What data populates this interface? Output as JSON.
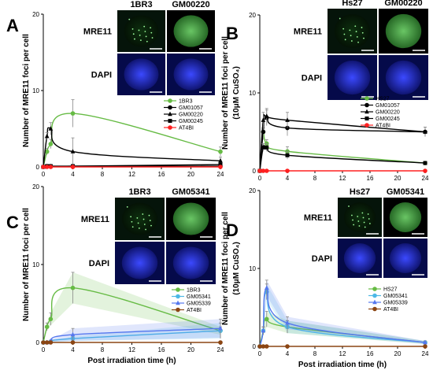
{
  "chart_data": [
    {
      "type": "line",
      "panel_label": "A",
      "ylabel": "Number of MRE11 foci per cell",
      "ylabel2": "",
      "xlabel": "",
      "xlim": [
        0,
        24
      ],
      "ylim": [
        0,
        20
      ],
      "x_ticks": [
        0,
        4,
        8,
        12,
        16,
        20,
        24
      ],
      "y_ticks": [
        0,
        10,
        20
      ],
      "x": [
        0,
        0.5,
        1,
        4,
        24
      ],
      "series": [
        {
          "name": "1BR3",
          "color": "#66bb44",
          "marker": "circle",
          "values": [
            0,
            2.0,
            3.0,
            7.0,
            2.0
          ],
          "errors": [
            0,
            0.4,
            0.6,
            1.8,
            0.6
          ]
        },
        {
          "name": "GM01057",
          "color": "#000000",
          "marker": "circle",
          "values": [
            0,
            0.1,
            0.1,
            0.1,
            0.1
          ],
          "errors": [
            0,
            0,
            0,
            0,
            0
          ]
        },
        {
          "name": "GM00220",
          "color": "#000000",
          "marker": "triangle",
          "values": [
            0,
            4.0,
            5.0,
            2.0,
            0.8
          ],
          "errors": [
            0,
            0.5,
            0.8,
            1.8,
            0.5
          ]
        },
        {
          "name": "GM00245",
          "color": "#000000",
          "marker": "square",
          "values": [
            0,
            0.1,
            0.1,
            0.1,
            0.3
          ],
          "errors": [
            0,
            0,
            0,
            0,
            0
          ]
        },
        {
          "name": "AT4BI",
          "color": "#ff2020",
          "marker": "circle",
          "values": [
            0,
            0,
            0,
            0,
            0
          ],
          "errors": [
            0,
            0,
            0,
            0,
            0
          ]
        }
      ],
      "micrographs": {
        "columns": [
          "1BR3",
          "GM00220"
        ],
        "rows": [
          "MRE11",
          "DAPI"
        ]
      }
    },
    {
      "type": "line",
      "panel_label": "B",
      "ylabel": "Number of MRE11 foci per cell",
      "ylabel2": "(10μM CuSO₄)",
      "xlabel": "",
      "xlim": [
        0,
        24
      ],
      "ylim": [
        0,
        20
      ],
      "x_ticks": [
        0,
        4,
        8,
        12,
        16,
        20,
        24
      ],
      "y_ticks": [
        0,
        10,
        20
      ],
      "x": [
        0,
        0.5,
        1,
        4,
        24
      ],
      "series": [
        {
          "name": "HS27",
          "color": "#66bb44",
          "marker": "circle",
          "values": [
            0,
            5.0,
            3.5,
            2.5,
            1.0
          ],
          "errors": [
            0,
            0.5,
            0.5,
            0.6,
            0.2
          ]
        },
        {
          "name": "GM01057",
          "color": "#000000",
          "marker": "circle",
          "values": [
            0,
            5.0,
            6.8,
            5.5,
            5.0
          ],
          "errors": [
            0,
            1.0,
            1.0,
            1.0,
            0.6
          ]
        },
        {
          "name": "GM00220",
          "color": "#000000",
          "marker": "triangle",
          "values": [
            0,
            6.5,
            7.0,
            6.5,
            5.0
          ],
          "errors": [
            0,
            1.0,
            1.0,
            1.0,
            0.6
          ]
        },
        {
          "name": "GM00245",
          "color": "#000000",
          "marker": "square",
          "values": [
            0,
            3.0,
            3.0,
            2.0,
            1.0
          ],
          "errors": [
            0,
            0.5,
            0.5,
            0.5,
            0.2
          ]
        },
        {
          "name": "AT4BI",
          "color": "#ff2020",
          "marker": "circle",
          "values": [
            0,
            0,
            0,
            0,
            0
          ],
          "errors": [
            0,
            0,
            0,
            0,
            0
          ]
        }
      ],
      "micrographs": {
        "columns": [
          "Hs27",
          "GM00220"
        ],
        "rows": [
          "MRE11",
          "DAPI"
        ]
      }
    },
    {
      "type": "line",
      "panel_label": "C",
      "ylabel": "Number of MRE11 foci per cell",
      "ylabel2": "",
      "xlabel": "Post irradiation time (h)",
      "xlim": [
        0,
        24
      ],
      "ylim": [
        0,
        20
      ],
      "x_ticks": [
        0,
        4,
        8,
        12,
        16,
        20,
        24
      ],
      "y_ticks": [
        0,
        10,
        20
      ],
      "x": [
        0,
        0.5,
        1,
        4,
        24
      ],
      "series": [
        {
          "name": "1BR3",
          "color": "#66bb44",
          "marker": "circle",
          "values": [
            0,
            2.0,
            3.0,
            7.0,
            1.5
          ],
          "errors": [
            0,
            0.5,
            0.8,
            2.0,
            0.5
          ]
        },
        {
          "name": "GM05341",
          "color": "#4db8e6",
          "marker": "circle",
          "values": [
            0,
            0,
            0.1,
            0.5,
            1.5
          ],
          "errors": [
            0,
            0,
            0.1,
            0.3,
            1.0
          ]
        },
        {
          "name": "GM05339",
          "color": "#5577ee",
          "marker": "triangle",
          "values": [
            0,
            0,
            0.2,
            1.0,
            1.8
          ],
          "errors": [
            0,
            0,
            0.1,
            0.8,
            1.2
          ]
        },
        {
          "name": "AT4BI",
          "color": "#8b4513",
          "marker": "circle",
          "values": [
            0,
            0,
            0,
            0,
            0
          ],
          "errors": [
            0,
            0,
            0,
            0,
            0
          ]
        }
      ],
      "micrographs": {
        "columns": [
          "1BR3",
          "GM05341"
        ],
        "rows": [
          "MRE11",
          "DAPI"
        ]
      }
    },
    {
      "type": "line",
      "panel_label": "D",
      "ylabel": "Number of MRE11 foci per cell",
      "ylabel2": "(10μM CuSO₄)",
      "xlabel": "Post irradiation time (h)",
      "xlim": [
        0,
        24
      ],
      "ylim": [
        0,
        20
      ],
      "x_ticks": [
        0,
        4,
        8,
        12,
        16,
        20,
        24
      ],
      "y_ticks": [
        0,
        10,
        20
      ],
      "x": [
        0,
        0.5,
        1,
        4,
        24
      ],
      "series": [
        {
          "name": "HS27",
          "color": "#66bb44",
          "marker": "circle",
          "values": [
            0,
            2.0,
            3.5,
            2.5,
            0.5
          ],
          "errors": [
            0,
            0.5,
            1.0,
            0.8,
            0.2
          ]
        },
        {
          "name": "GM05341",
          "color": "#4db8e6",
          "marker": "circle",
          "values": [
            0,
            2.0,
            7.0,
            2.5,
            0.5
          ],
          "errors": [
            0,
            0.5,
            1.0,
            0.8,
            0.2
          ]
        },
        {
          "name": "GM05339",
          "color": "#5577ee",
          "marker": "triangle",
          "values": [
            0,
            2.0,
            7.5,
            3.0,
            0.5
          ],
          "errors": [
            0,
            0.5,
            1.0,
            0.8,
            0.2
          ]
        },
        {
          "name": "AT4BI",
          "color": "#8b4513",
          "marker": "circle",
          "values": [
            0,
            0,
            0,
            0,
            0
          ],
          "errors": [
            0,
            0,
            0,
            0,
            0
          ]
        }
      ],
      "micrographs": {
        "columns": [
          "Hs27",
          "GM05341"
        ],
        "rows": [
          "MRE11",
          "DAPI"
        ]
      }
    }
  ]
}
